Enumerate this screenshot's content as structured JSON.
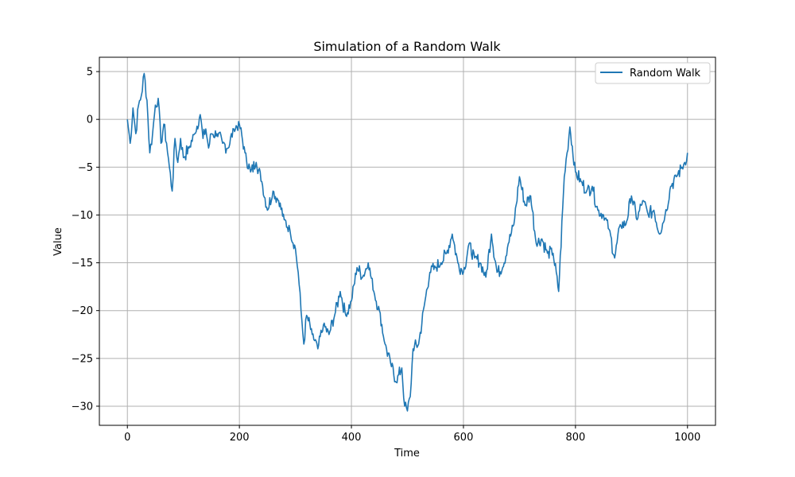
{
  "chart_data": {
    "type": "line",
    "title": "Simulation of a Random Walk",
    "xlabel": "Time",
    "ylabel": "Value",
    "xlim": [
      -50,
      1050
    ],
    "ylim": [
      -32,
      6.5
    ],
    "xticks": [
      0,
      200,
      400,
      600,
      800,
      1000
    ],
    "yticks": [
      5,
      0,
      -5,
      -10,
      -15,
      -20,
      -25,
      -30
    ],
    "xtick_labels": [
      "0",
      "200",
      "400",
      "600",
      "800",
      "1000"
    ],
    "ytick_labels": [
      "5",
      "0",
      "−5",
      "−10",
      "−15",
      "−20",
      "−25",
      "−30"
    ],
    "grid": true,
    "legend_position": "top-right",
    "series": [
      {
        "name": "Random Walk",
        "color": "#1f77b4",
        "x": [
          0,
          5,
          10,
          15,
          20,
          25,
          30,
          35,
          40,
          45,
          50,
          55,
          60,
          65,
          70,
          75,
          80,
          85,
          90,
          95,
          100,
          110,
          120,
          130,
          135,
          140,
          145,
          150,
          160,
          170,
          180,
          190,
          200,
          210,
          220,
          230,
          240,
          250,
          260,
          270,
          280,
          290,
          300,
          305,
          310,
          315,
          320,
          330,
          340,
          350,
          360,
          370,
          380,
          390,
          400,
          410,
          420,
          430,
          440,
          450,
          460,
          470,
          480,
          490,
          495,
          500,
          505,
          510,
          520,
          530,
          540,
          550,
          560,
          570,
          580,
          590,
          600,
          610,
          620,
          630,
          640,
          650,
          660,
          670,
          680,
          690,
          700,
          710,
          720,
          730,
          740,
          750,
          760,
          770,
          780,
          785,
          790,
          800,
          810,
          820,
          830,
          840,
          850,
          860,
          870,
          880,
          890,
          900,
          910,
          920,
          930,
          940,
          950,
          960,
          970,
          980,
          990,
          995,
          1000
        ],
        "y": [
          0,
          -2.5,
          1.2,
          -1.5,
          1.5,
          2.5,
          4.8,
          2.0,
          -3.5,
          -1.5,
          1.5,
          2.2,
          -2.5,
          -0.5,
          -2.5,
          -5.0,
          -7.5,
          -2.0,
          -4.5,
          -2.0,
          -4.0,
          -3.0,
          -1.5,
          0.5,
          -2.0,
          -1.0,
          -3.0,
          -1.5,
          -1.5,
          -2.5,
          -3.0,
          -1.0,
          -0.5,
          -3.5,
          -5.5,
          -4.5,
          -6.5,
          -9.5,
          -7.5,
          -8.5,
          -10.5,
          -11.5,
          -13.5,
          -16.0,
          -20.0,
          -23.5,
          -20.5,
          -22.5,
          -24.0,
          -21.5,
          -22.5,
          -20.5,
          -18.0,
          -20.5,
          -19.0,
          -15.5,
          -16.5,
          -15.0,
          -18.0,
          -20.0,
          -23.5,
          -25.5,
          -27.5,
          -26.0,
          -30.0,
          -30.5,
          -29.0,
          -24.0,
          -23.5,
          -19.5,
          -16.0,
          -15.5,
          -15.0,
          -14.0,
          -12.0,
          -15.0,
          -16.0,
          -13.0,
          -14.5,
          -15.0,
          -16.5,
          -12.0,
          -16.0,
          -15.5,
          -13.0,
          -11.0,
          -6.0,
          -9.0,
          -8.0,
          -13.0,
          -12.5,
          -14.0,
          -14.0,
          -18.0,
          -6.0,
          -3.5,
          -0.8,
          -5.5,
          -6.5,
          -7.5,
          -7.0,
          -9.5,
          -10.0,
          -11.5,
          -14.5,
          -11.0,
          -11.0,
          -8.0,
          -10.5,
          -8.5,
          -10.0,
          -9.5,
          -12.0,
          -10.0,
          -7.0,
          -6.0,
          -5.0,
          -4.5,
          -3.5
        ]
      }
    ]
  }
}
